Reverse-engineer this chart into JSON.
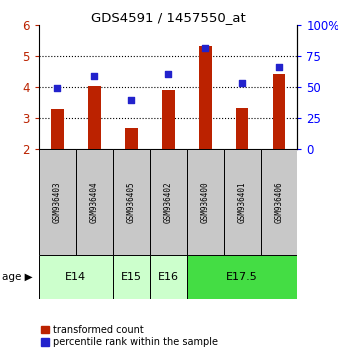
{
  "title": "GDS4591 / 1457550_at",
  "samples": [
    "GSM936403",
    "GSM936404",
    "GSM936405",
    "GSM936402",
    "GSM936400",
    "GSM936401",
    "GSM936406"
  ],
  "bar_values": [
    3.27,
    4.02,
    2.68,
    3.9,
    5.32,
    3.3,
    4.42
  ],
  "scatter_values": [
    3.95,
    4.35,
    3.58,
    4.42,
    5.25,
    4.12,
    4.65
  ],
  "bar_color": "#BB2200",
  "scatter_color": "#2222CC",
  "ylim_left": [
    2,
    6
  ],
  "ylim_right": [
    0,
    100
  ],
  "yticks_left": [
    2,
    3,
    4,
    5,
    6
  ],
  "yticks_right": [
    0,
    25,
    50,
    75,
    100
  ],
  "ytick_labels_right": [
    "0",
    "25",
    "50",
    "75",
    "100%"
  ],
  "groups": [
    {
      "label": "E14",
      "samples": [
        "GSM936403",
        "GSM936404"
      ],
      "color": "#CCFFCC"
    },
    {
      "label": "E15",
      "samples": [
        "GSM936405"
      ],
      "color": "#CCFFCC"
    },
    {
      "label": "E16",
      "samples": [
        "GSM936402"
      ],
      "color": "#CCFFCC"
    },
    {
      "label": "E17.5",
      "samples": [
        "GSM936400",
        "GSM936401",
        "GSM936406"
      ],
      "color": "#44DD44"
    }
  ],
  "age_label": "age",
  "legend_bar_label": "transformed count",
  "legend_scatter_label": "percentile rank within the sample",
  "bar_width": 0.35,
  "background_color": "#FFFFFF",
  "sample_area_color": "#C8C8C8",
  "figsize": [
    3.38,
    3.54
  ],
  "dpi": 100
}
